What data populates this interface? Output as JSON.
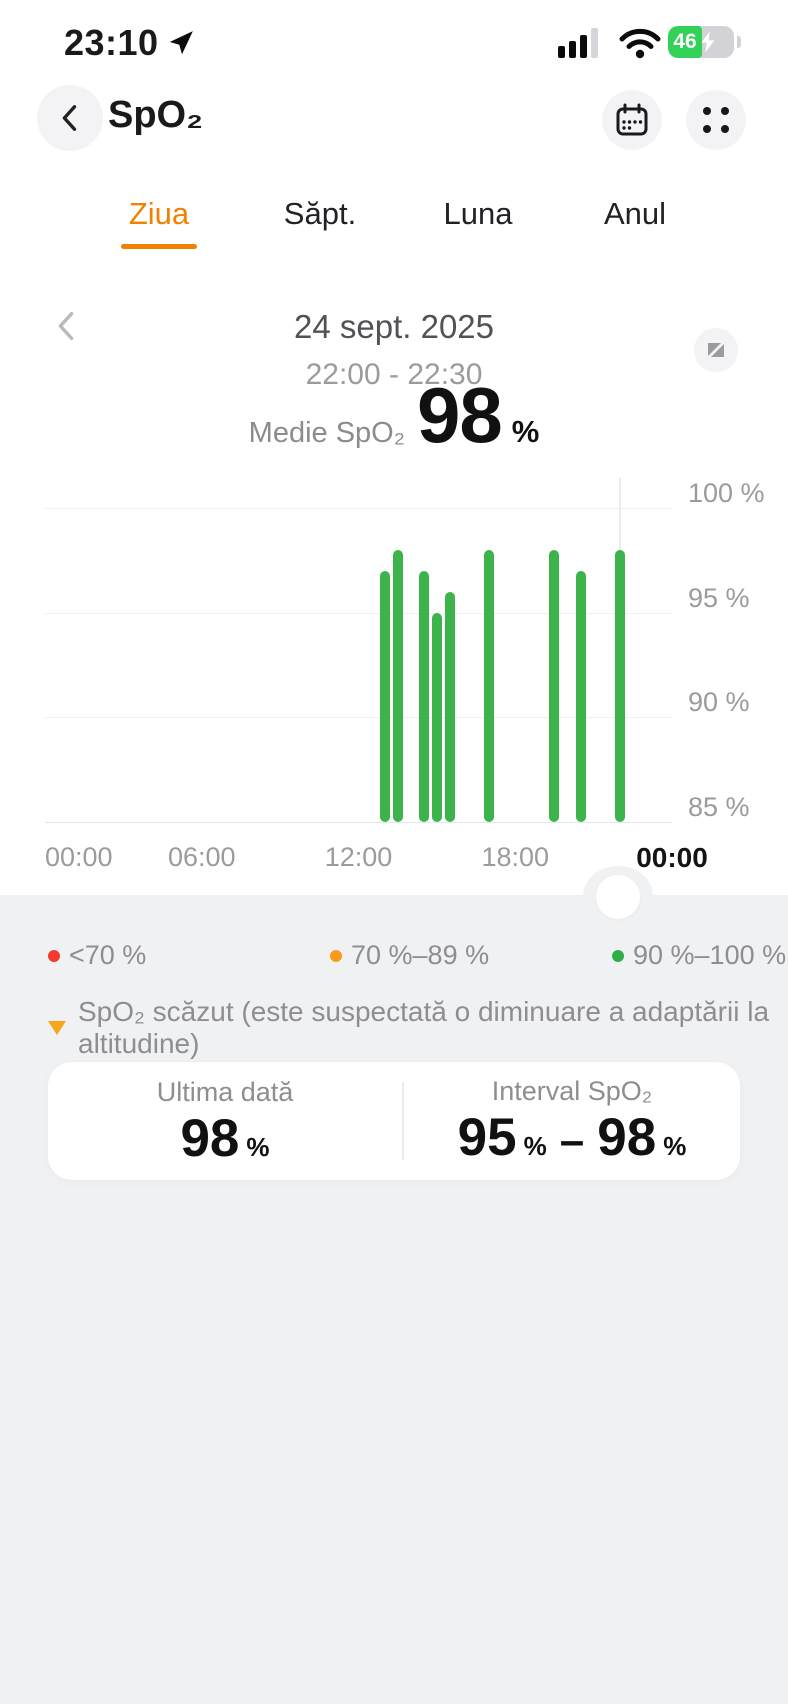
{
  "theme": {
    "accent_orange": "#f18101",
    "background_gray": "#f0f1f3",
    "text_gray": "#8e8e92",
    "axis_gray": "#9b9b9f"
  },
  "status_bar": {
    "time": "23:10",
    "battery_percent": "46",
    "battery_color": "#32d158",
    "icons": [
      "location-arrow-icon",
      "cellular-signal-icon",
      "wifi-icon",
      "battery-charging-icon"
    ]
  },
  "header": {
    "title": "SpO₂",
    "back_label": "back",
    "calendar_button": "calendar-icon",
    "menu_button": "four-dots-icon"
  },
  "tabs": [
    {
      "label": "Ziua",
      "active": true
    },
    {
      "label": "Săpt.",
      "active": false
    },
    {
      "label": "Luna",
      "active": false
    },
    {
      "label": "Anul",
      "active": false
    }
  ],
  "date_nav": {
    "date": "24 sept. 2025",
    "time_range": "22:00 - 22:30"
  },
  "summary": {
    "label": "Medie SpO₂",
    "value": "98",
    "unit": "%"
  },
  "chart_data": {
    "type": "bar",
    "title": "SpO₂ per day, 30-min measurements",
    "ylabel": "SpO₂",
    "ylim": [
      85,
      100
    ],
    "x_range_hours": [
      0,
      24
    ],
    "y_tick_values": [
      100,
      95,
      90,
      85
    ],
    "y_tick_labels": [
      "100 %",
      "95 %",
      "90 %",
      "85 %"
    ],
    "x_tick_hours": [
      0,
      6,
      12,
      18,
      24
    ],
    "x_tick_labels": [
      "00:00",
      "06:00",
      "12:00",
      "18:00",
      "00:00"
    ],
    "grid": true,
    "legend_position": "bottom",
    "bar_color": "#3cb44b",
    "points": {
      "times": [
        "13:00",
        "13:30",
        "14:30",
        "15:00",
        "15:30",
        "17:00",
        "19:30",
        "20:30",
        "22:00"
      ],
      "hours": [
        13,
        13.5,
        14.5,
        15,
        15.5,
        17,
        19.5,
        20.5,
        22
      ],
      "values": [
        97,
        98,
        97,
        95,
        96,
        98,
        98,
        97,
        98
      ]
    },
    "selected_hour": 22,
    "selected_range": "22:00 - 22:30"
  },
  "legend": [
    {
      "label": "<70 %",
      "color": "#f4392f"
    },
    {
      "label": "70 %–89 %",
      "color": "#f79a1d"
    },
    {
      "label": "90 %–100 %",
      "color": "#2fae46"
    }
  ],
  "warning": {
    "icon_color": "#f8a41c",
    "text": "SpO₂ scăzut (este suspectată o diminuare a adaptării la altitudine)"
  },
  "stats_card": {
    "left": {
      "label": "Ultima dată",
      "value": "98",
      "unit": "%"
    },
    "right": {
      "label": "Interval SpO₂",
      "value_low": "95",
      "unit_low": "%",
      "separator": "–",
      "value_high": "98",
      "unit_high": "%"
    }
  }
}
